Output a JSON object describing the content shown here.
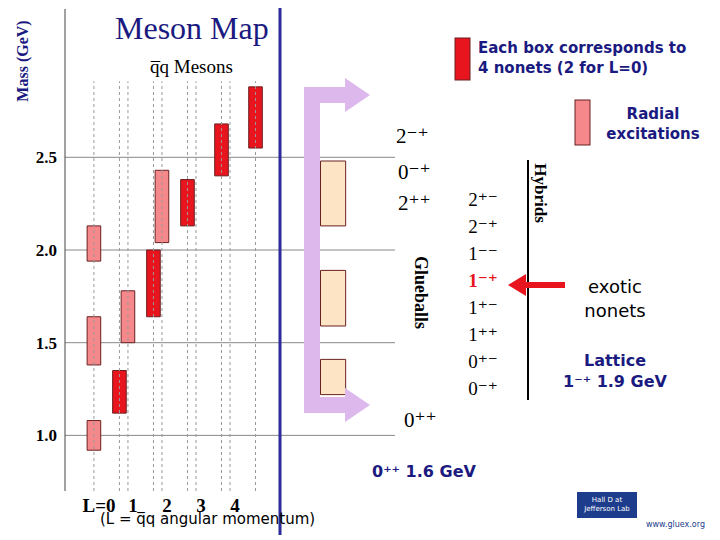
{
  "chart_data": {
    "type": "range_bar",
    "title": "Meson Map",
    "subtitle": "q̅q Mesons",
    "y_label": "Mass (GeV)",
    "x_label": "(L = q̅q angular momentum)",
    "categories": [
      "L=0",
      "1",
      "2",
      "3",
      "4"
    ],
    "ylim": [
      0.7,
      3.3
    ],
    "yticks": [
      {
        "value": 1,
        "label": "1.0"
      },
      {
        "value": 1.5,
        "label": "1.5"
      },
      {
        "value": 2,
        "label": "2.0"
      },
      {
        "value": 2.5,
        "label": "2.5"
      }
    ],
    "grid": true,
    "series": [
      {
        "name": "Each box corresponds to 4 nonets (2 for L=0)",
        "color": "#e8141e",
        "values": [
          [
            [
              1.12,
              1.35
            ]
          ],
          [
            [
              1.64,
              2.0
            ]
          ],
          [
            [
              2.13,
              2.38
            ]
          ],
          [
            [
              2.4,
              2.68
            ]
          ],
          [
            [
              2.55,
              2.88
            ]
          ]
        ]
      },
      {
        "name": "Radial excitations",
        "color": "#f4888a",
        "values": [
          [
            [
              0.92,
              1.08
            ],
            [
              1.38,
              1.64
            ],
            [
              1.94,
              2.13
            ]
          ],
          [
            [
              1.5,
              1.78
            ]
          ],
          [
            [
              2.04,
              2.43
            ]
          ],
          [],
          []
        ]
      }
    ],
    "glueballs": {
      "label": "Glueballs",
      "states": [
        "2⁻⁺",
        "0⁻⁺",
        "2⁺⁺",
        "0⁺⁺"
      ],
      "color": "#fde4c4",
      "values": [
        [
          2.13,
          2.48
        ],
        [
          1.59,
          1.89
        ],
        [
          1.22,
          1.41
        ]
      ],
      "note": "0⁺⁺ 1.6 GeV"
    },
    "hybrids": {
      "label": "Hybrids",
      "states": [
        "2⁺⁻",
        "2⁻⁺",
        "1⁻⁻",
        "1⁻⁺",
        "1⁺⁻",
        "1⁺⁺",
        "0⁺⁻",
        "0⁻⁺"
      ],
      "highlight": "1⁻⁺",
      "exotic": [
        "exotic",
        "nonets"
      ],
      "lattice": [
        "Lattice",
        "1⁻⁺ 1.9 GeV"
      ]
    },
    "logos": [
      "Hall D at Jefferson Lab",
      "www.gluex.org"
    ]
  }
}
